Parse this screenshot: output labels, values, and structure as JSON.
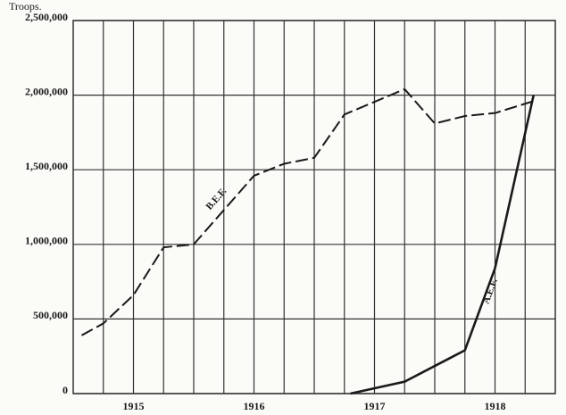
{
  "chart_data": {
    "type": "line",
    "y_label": "Troops.",
    "xlim": [
      1914.5,
      1918.5
    ],
    "xticks": [
      1915,
      1916,
      1917,
      1918
    ],
    "x_minor_ticks": [
      1914.75,
      1915.25,
      1915.5,
      1915.75,
      1916.25,
      1916.5,
      1916.75,
      1917.25,
      1917.5,
      1917.75,
      1918.25
    ],
    "ylim": [
      0,
      2500000
    ],
    "yticks": [
      0,
      {
        "value": 500000,
        "label": "500,000"
      },
      {
        "value": 1000000,
        "label": "1,000,000"
      },
      {
        "value": 1500000,
        "label": "1,500,000"
      },
      {
        "value": 2000000,
        "label": "2,000,000"
      },
      {
        "value": 2500000,
        "label": "2,500,000"
      }
    ],
    "grid": true,
    "series": [
      {
        "name": "B.E.F.",
        "color": "#1a1a1a",
        "dashed": true,
        "x": [
          1914.57,
          1914.75,
          1915.0,
          1915.25,
          1915.5,
          1916.0,
          1916.25,
          1916.5,
          1916.75,
          1917.25,
          1917.5,
          1917.75,
          1918.0,
          1918.32
        ],
        "values": [
          390000,
          470000,
          660000,
          980000,
          1000000,
          1460000,
          1540000,
          1580000,
          1870000,
          2040000,
          1810000,
          1860000,
          1880000,
          1960000
        ]
      },
      {
        "name": "A.E.F.",
        "color": "#1a1a1a",
        "dashed": false,
        "x": [
          1916.8,
          1917.25,
          1917.5,
          1917.75,
          1918.0,
          1918.32
        ],
        "values": [
          0,
          80000,
          185000,
          290000,
          840000,
          2000000
        ]
      }
    ]
  }
}
